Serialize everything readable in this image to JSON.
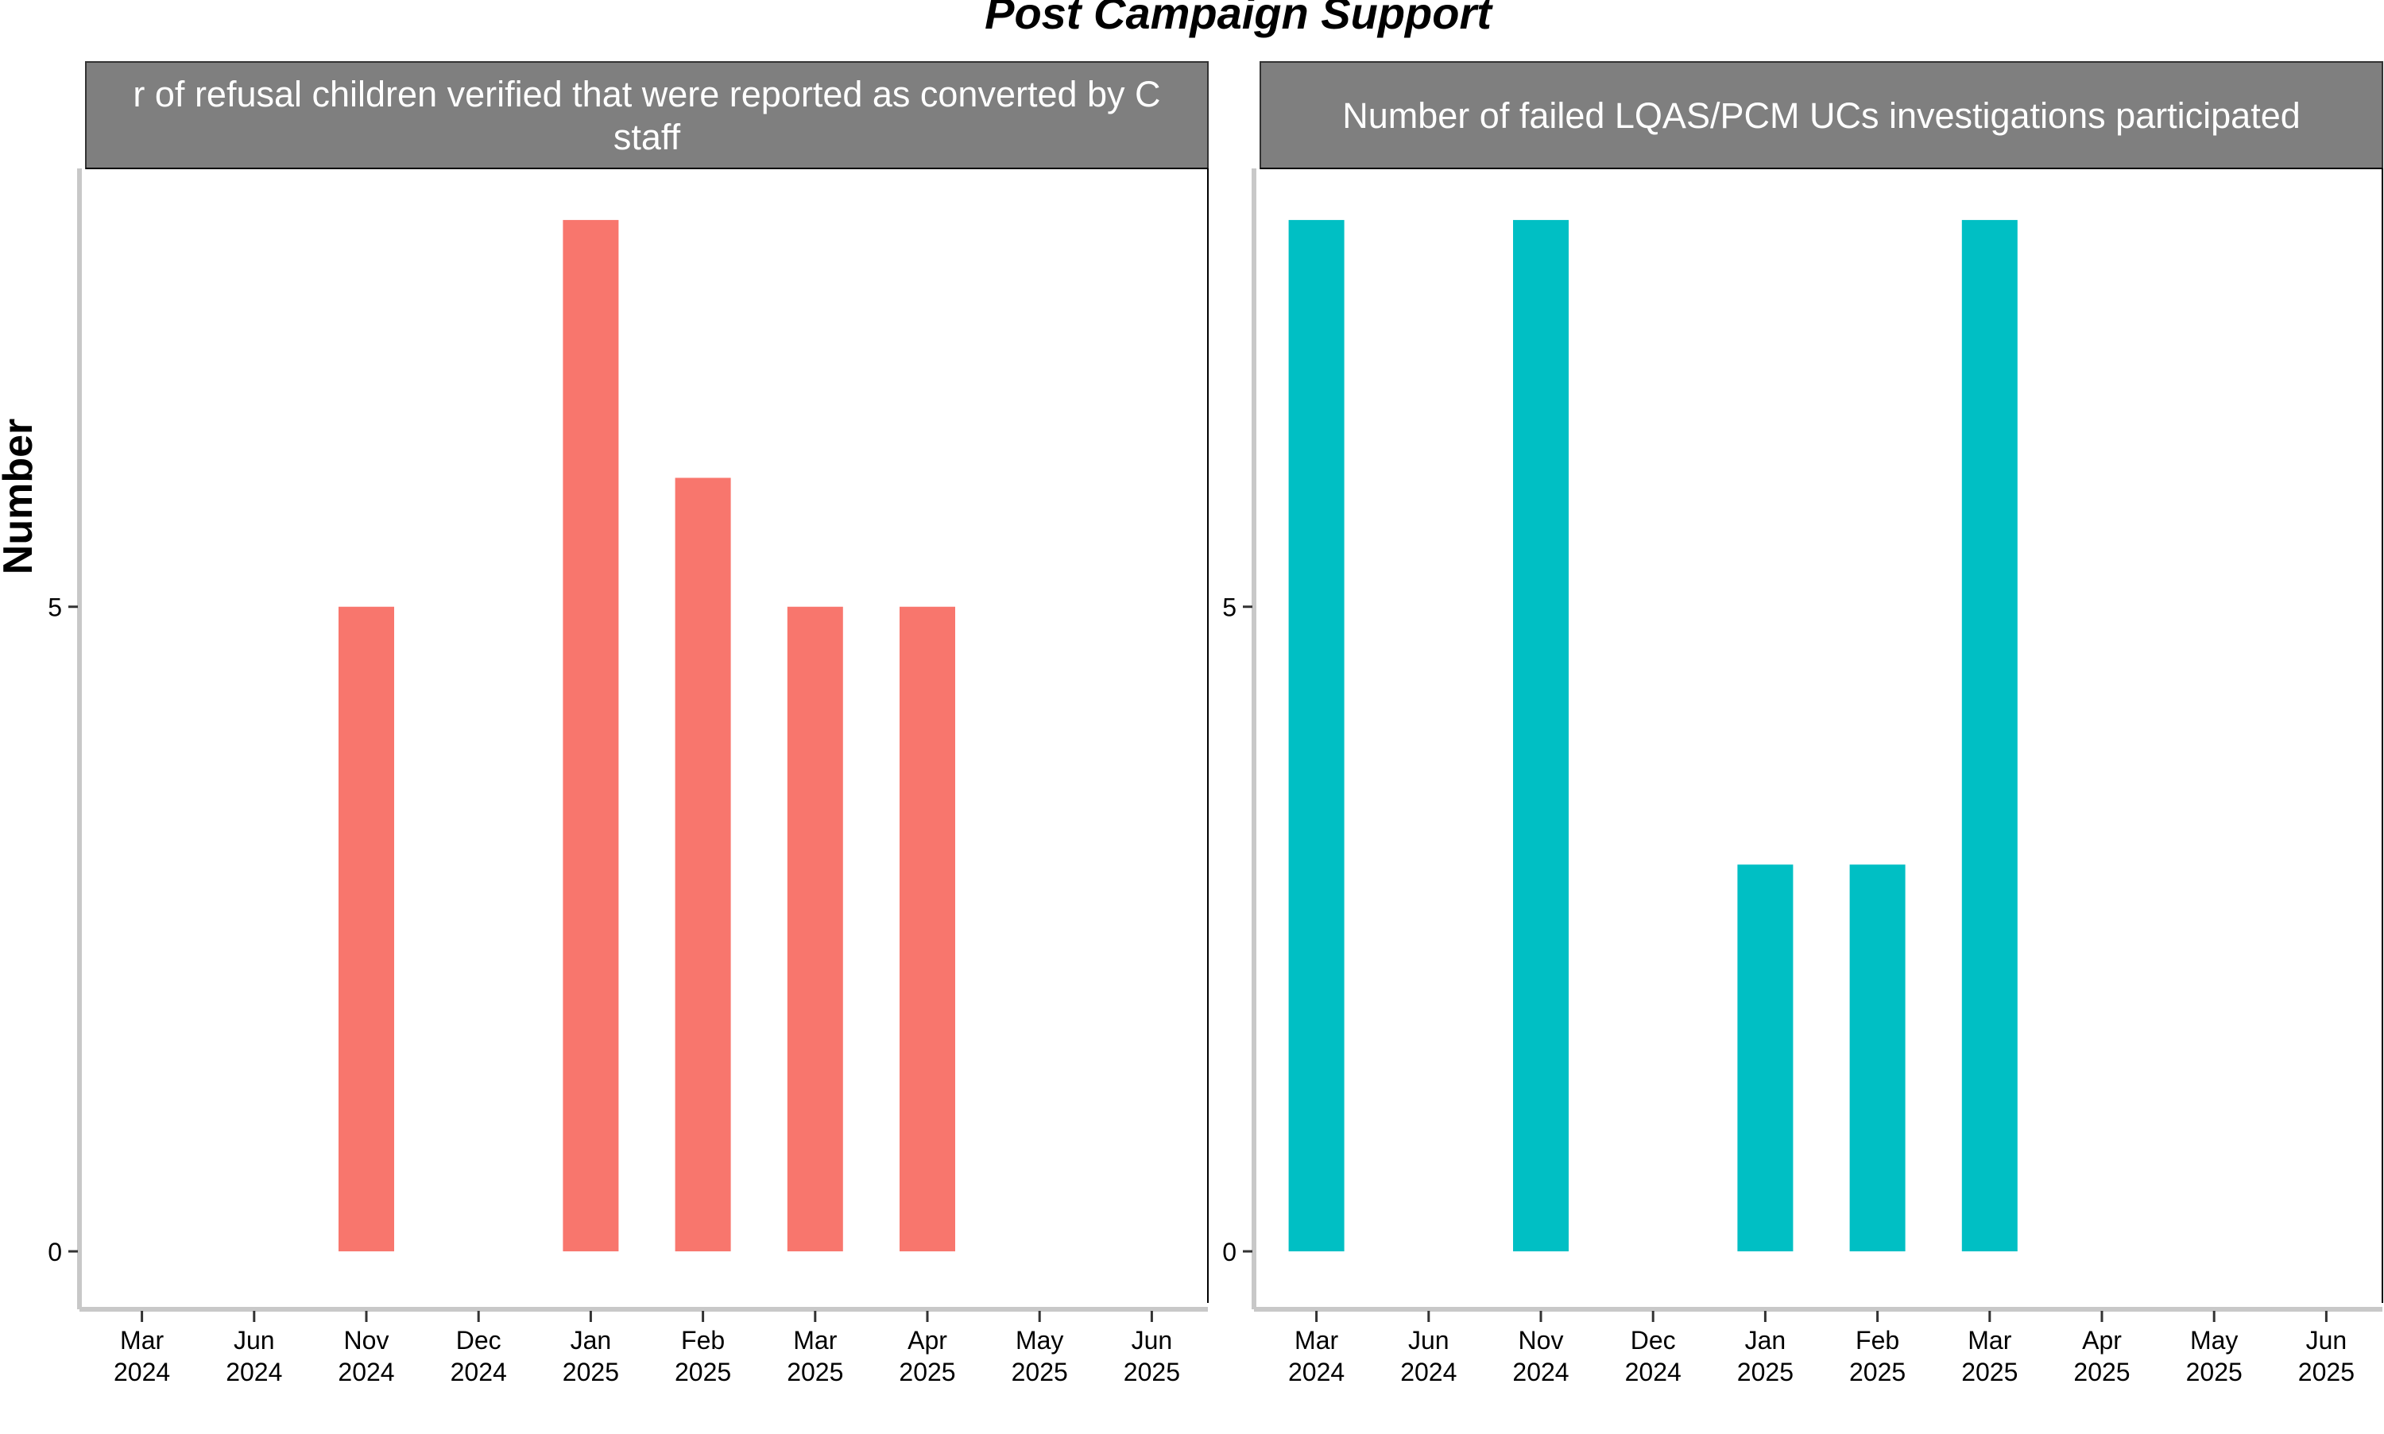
{
  "chart_data": {
    "title": "Post Campaign Support",
    "ylabel": "Number",
    "type": "bar",
    "categories": [
      [
        "Mar",
        "2024"
      ],
      [
        "Jun",
        "2024"
      ],
      [
        "Nov",
        "2024"
      ],
      [
        "Dec",
        "2024"
      ],
      [
        "Jan",
        "2025"
      ],
      [
        "Feb",
        "2025"
      ],
      [
        "Mar",
        "2025"
      ],
      [
        "Apr",
        "2025"
      ],
      [
        "May",
        "2025"
      ],
      [
        "Jun",
        "2025"
      ]
    ],
    "ylim": [
      -0.4,
      8.4
    ],
    "yticks": [
      0,
      5
    ],
    "grid": false,
    "panels": [
      {
        "title": "Number of refusal children verified that were reported as converted by CO staff",
        "title_lines": [
          "r of refusal children verified that were reported as converted by C",
          "staff"
        ],
        "color": "#F8766D",
        "values": [
          null,
          null,
          5,
          null,
          8,
          6,
          5,
          5,
          null,
          null
        ]
      },
      {
        "title": "Number of failed LQAS/PCM UCs investigations participated",
        "title_lines": [
          "Number of failed LQAS/PCM UCs investigations participated"
        ],
        "color": "#00BFC4",
        "values": [
          8,
          null,
          8,
          null,
          3,
          3,
          8,
          null,
          null,
          null
        ]
      }
    ]
  }
}
